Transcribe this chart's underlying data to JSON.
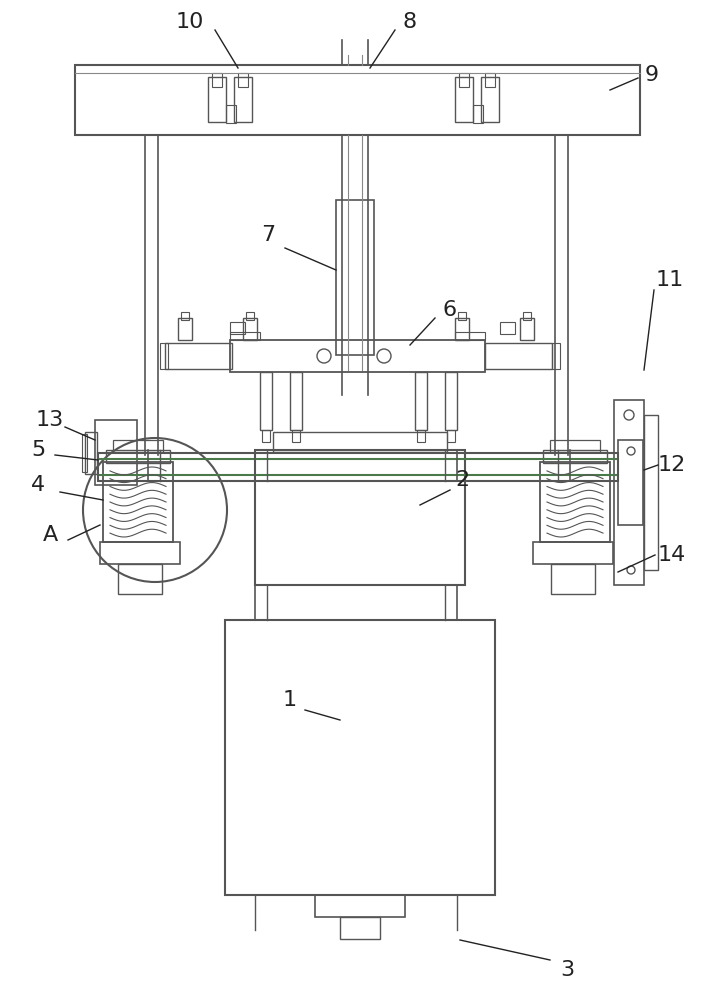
{
  "bg_color": "#ffffff",
  "lc": "#555555",
  "lc_thin": "#888888",
  "gc": "#4a7a4a",
  "label_fs": 16,
  "label_color": "#222222",
  "figw": 7.09,
  "figh": 10.0,
  "dpi": 100
}
